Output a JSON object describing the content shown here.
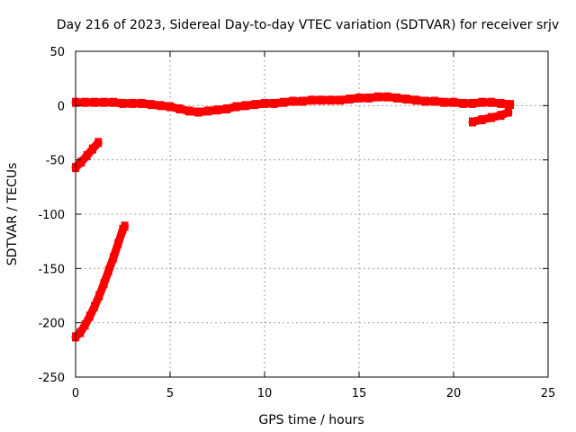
{
  "chart_data": {
    "type": "scatter",
    "title": "Day 216 of 2023, Sidereal Day-to-day VTEC variation (SDTVAR) for receiver srjv",
    "xlabel": "GPS time / hours",
    "ylabel": "SDTVAR / TECUs",
    "xlim": [
      0,
      25
    ],
    "ylim": [
      -250,
      50
    ],
    "x_ticks": [
      0,
      5,
      10,
      15,
      20,
      25
    ],
    "y_ticks": [
      -250,
      -200,
      -150,
      -100,
      -50,
      0,
      50
    ],
    "grid": true,
    "legend": "none",
    "series_color": "#ff0000",
    "series": [
      {
        "points": [
          [
            0.0,
            3
          ],
          [
            0.5,
            3
          ],
          [
            1.0,
            3
          ],
          [
            1.5,
            3
          ],
          [
            2.0,
            3
          ],
          [
            2.5,
            2
          ],
          [
            3.0,
            2
          ],
          [
            3.5,
            2
          ],
          [
            4.0,
            1
          ],
          [
            4.5,
            0
          ],
          [
            5.0,
            -1
          ],
          [
            5.5,
            -3
          ],
          [
            6.0,
            -5
          ],
          [
            6.5,
            -6
          ],
          [
            7.0,
            -5
          ],
          [
            7.5,
            -4
          ],
          [
            8.0,
            -3
          ],
          [
            8.5,
            -1
          ],
          [
            9.0,
            0
          ],
          [
            9.5,
            1
          ],
          [
            10.0,
            2
          ],
          [
            10.5,
            2
          ],
          [
            11.0,
            3
          ],
          [
            11.5,
            4
          ],
          [
            12.0,
            4
          ],
          [
            12.5,
            5
          ],
          [
            13.0,
            5
          ],
          [
            13.5,
            5
          ],
          [
            14.0,
            5
          ],
          [
            14.5,
            6
          ],
          [
            15.0,
            7
          ],
          [
            15.5,
            7
          ],
          [
            16.0,
            8
          ],
          [
            16.5,
            8
          ],
          [
            17.0,
            7
          ],
          [
            17.5,
            6
          ],
          [
            18.0,
            5
          ],
          [
            18.5,
            4
          ],
          [
            19.0,
            4
          ],
          [
            19.5,
            3
          ],
          [
            20.0,
            3
          ],
          [
            20.5,
            2
          ],
          [
            21.0,
            2
          ],
          [
            21.5,
            3
          ],
          [
            22.0,
            3
          ],
          [
            22.5,
            2
          ],
          [
            23.0,
            1
          ]
        ]
      },
      {
        "points": [
          [
            21.0,
            -15
          ],
          [
            21.5,
            -13
          ],
          [
            22.0,
            -11
          ],
          [
            22.5,
            -9
          ],
          [
            22.9,
            -6
          ]
        ]
      },
      {
        "points": [
          [
            0.0,
            -57
          ],
          [
            0.3,
            -52
          ],
          [
            0.6,
            -46
          ],
          [
            0.9,
            -40
          ],
          [
            1.2,
            -34
          ]
        ]
      },
      {
        "points": [
          [
            0.0,
            -213
          ],
          [
            0.25,
            -209
          ],
          [
            0.5,
            -202
          ],
          [
            0.75,
            -194
          ],
          [
            1.0,
            -185
          ],
          [
            1.25,
            -175
          ],
          [
            1.5,
            -164
          ],
          [
            1.75,
            -152
          ],
          [
            2.0,
            -140
          ],
          [
            2.25,
            -127
          ],
          [
            2.5,
            -114
          ],
          [
            2.6,
            -111
          ]
        ]
      }
    ]
  }
}
